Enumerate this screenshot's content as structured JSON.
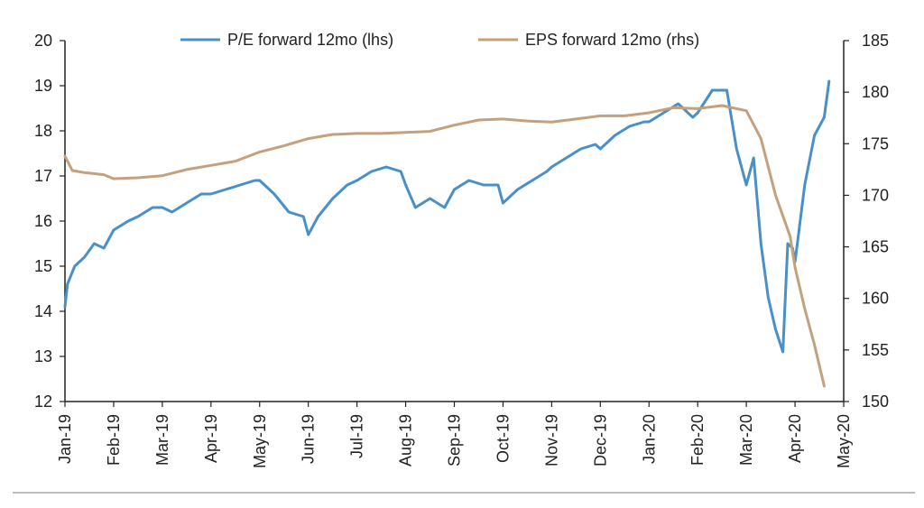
{
  "chart_data": {
    "type": "line",
    "x_axis": {
      "tick_labels": [
        "Jan-19",
        "Feb-19",
        "Mar-19",
        "Apr-19",
        "May-19",
        "Jun-19",
        "Jul-19",
        "Aug-19",
        "Sep-19",
        "Oct-19",
        "Nov-19",
        "Dec-19",
        "Jan-20",
        "Feb-20",
        "Mar-20",
        "Apr-20",
        "May-20"
      ]
    },
    "y_left": {
      "ylim": [
        12,
        20
      ],
      "ticks": [
        12,
        13,
        14,
        15,
        16,
        17,
        18,
        19,
        20
      ]
    },
    "y_right": {
      "ylim": [
        150,
        185
      ],
      "ticks": [
        150,
        155,
        160,
        165,
        170,
        175,
        180,
        185
      ]
    },
    "legend_position": "top-center",
    "series": [
      {
        "name": "P/E forward 12mo (lhs)",
        "axis": "left",
        "color": "#4a90c8",
        "points": [
          [
            "Jan-19",
            14.1
          ],
          [
            "Jan-19+0.05",
            14.6
          ],
          [
            "Jan-19+0.2",
            15.0
          ],
          [
            "Jan-19+0.4",
            15.2
          ],
          [
            "Jan-19+0.6",
            15.5
          ],
          [
            "Jan-19+0.8",
            15.4
          ],
          [
            "Feb-19",
            15.8
          ],
          [
            "Feb-19+0.3",
            16.0
          ],
          [
            "Feb-19+0.5",
            16.1
          ],
          [
            "Feb-19+0.8",
            16.3
          ],
          [
            "Mar-19",
            16.3
          ],
          [
            "Mar-19+0.2",
            16.2
          ],
          [
            "Mar-19+0.5",
            16.4
          ],
          [
            "Mar-19+0.8",
            16.6
          ],
          [
            "Apr-19",
            16.6
          ],
          [
            "Apr-19+0.3",
            16.7
          ],
          [
            "Apr-19+0.6",
            16.8
          ],
          [
            "Apr-19+0.9",
            16.9
          ],
          [
            "May-19",
            16.9
          ],
          [
            "May-19+0.3",
            16.6
          ],
          [
            "May-19+0.6",
            16.2
          ],
          [
            "May-19+0.9",
            16.1
          ],
          [
            "Jun-19",
            15.7
          ],
          [
            "Jun-19+0.2",
            16.1
          ],
          [
            "Jun-19+0.5",
            16.5
          ],
          [
            "Jun-19+0.8",
            16.8
          ],
          [
            "Jul-19",
            16.9
          ],
          [
            "Jul-19+0.3",
            17.1
          ],
          [
            "Jul-19+0.6",
            17.2
          ],
          [
            "Jul-19+0.9",
            17.1
          ],
          [
            "Aug-19",
            16.8
          ],
          [
            "Aug-19+0.2",
            16.3
          ],
          [
            "Aug-19+0.5",
            16.5
          ],
          [
            "Aug-19+0.8",
            16.3
          ],
          [
            "Sep-19",
            16.7
          ],
          [
            "Sep-19+0.3",
            16.9
          ],
          [
            "Sep-19+0.6",
            16.8
          ],
          [
            "Sep-19+0.9",
            16.8
          ],
          [
            "Oct-19",
            16.4
          ],
          [
            "Oct-19+0.3",
            16.7
          ],
          [
            "Oct-19+0.6",
            16.9
          ],
          [
            "Oct-19+0.9",
            17.1
          ],
          [
            "Nov-19",
            17.2
          ],
          [
            "Nov-19+0.3",
            17.4
          ],
          [
            "Nov-19+0.6",
            17.6
          ],
          [
            "Nov-19+0.9",
            17.7
          ],
          [
            "Dec-19",
            17.6
          ],
          [
            "Dec-19+0.3",
            17.9
          ],
          [
            "Dec-19+0.6",
            18.1
          ],
          [
            "Dec-19+0.9",
            18.2
          ],
          [
            "Jan-20",
            18.2
          ],
          [
            "Jan-20+0.3",
            18.4
          ],
          [
            "Jan-20+0.6",
            18.6
          ],
          [
            "Jan-20+0.9",
            18.3
          ],
          [
            "Feb-20",
            18.4
          ],
          [
            "Feb-20+0.3",
            18.9
          ],
          [
            "Feb-20+0.6",
            18.9
          ],
          [
            "Feb-20+0.8",
            17.6
          ],
          [
            "Mar-20",
            16.8
          ],
          [
            "Mar-20+0.15",
            17.4
          ],
          [
            "Mar-20+0.3",
            15.5
          ],
          [
            "Mar-20+0.45",
            14.3
          ],
          [
            "Mar-20+0.6",
            13.6
          ],
          [
            "Mar-20+0.75",
            13.1
          ],
          [
            "Mar-20+0.85",
            15.5
          ],
          [
            "Mar-20+0.95",
            15.4
          ],
          [
            "Apr-20",
            15.1
          ],
          [
            "Apr-20+0.2",
            16.8
          ],
          [
            "Apr-20+0.4",
            17.9
          ],
          [
            "Apr-20+0.6",
            18.3
          ],
          [
            "Apr-20+0.7",
            19.1
          ]
        ]
      },
      {
        "name": "EPS forward 12mo (rhs)",
        "axis": "right",
        "color": "#c4a07c",
        "points": [
          [
            "Jan-19",
            173.8
          ],
          [
            "Jan-19+0.15",
            172.4
          ],
          [
            "Jan-19+0.4",
            172.2
          ],
          [
            "Jan-19+0.8",
            172.0
          ],
          [
            "Feb-19",
            171.6
          ],
          [
            "Feb-19+0.5",
            171.7
          ],
          [
            "Mar-19",
            171.9
          ],
          [
            "Mar-19+0.5",
            172.5
          ],
          [
            "Apr-19",
            172.9
          ],
          [
            "Apr-19+0.5",
            173.3
          ],
          [
            "May-19",
            174.2
          ],
          [
            "May-19+0.5",
            174.8
          ],
          [
            "Jun-19",
            175.5
          ],
          [
            "Jun-19+0.5",
            175.9
          ],
          [
            "Jul-19",
            176.0
          ],
          [
            "Jul-19+0.5",
            176.0
          ],
          [
            "Aug-19",
            176.1
          ],
          [
            "Aug-19+0.5",
            176.2
          ],
          [
            "Sep-19",
            176.8
          ],
          [
            "Sep-19+0.5",
            177.3
          ],
          [
            "Oct-19",
            177.4
          ],
          [
            "Oct-19+0.5",
            177.2
          ],
          [
            "Nov-19",
            177.1
          ],
          [
            "Nov-19+0.5",
            177.4
          ],
          [
            "Dec-19",
            177.7
          ],
          [
            "Dec-19+0.5",
            177.7
          ],
          [
            "Jan-20",
            178.0
          ],
          [
            "Jan-20+0.5",
            178.5
          ],
          [
            "Feb-20",
            178.4
          ],
          [
            "Feb-20+0.5",
            178.7
          ],
          [
            "Mar-20",
            178.2
          ],
          [
            "Mar-20+0.3",
            175.5
          ],
          [
            "Mar-20+0.6",
            170.0
          ],
          [
            "Mar-20+0.9",
            166.0
          ],
          [
            "Apr-20",
            163.0
          ],
          [
            "Apr-20+0.2",
            159.0
          ],
          [
            "Apr-20+0.4",
            155.5
          ],
          [
            "Apr-20+0.6",
            151.5
          ]
        ]
      }
    ]
  }
}
